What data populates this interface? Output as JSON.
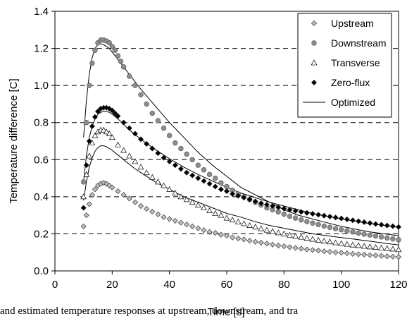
{
  "chart_data": {
    "type": "scatter",
    "xlabel": "Time [s]",
    "ylabel": "Temperature difference [C]",
    "xlim": [
      0,
      120
    ],
    "ylim": [
      0,
      1.4
    ],
    "xticks": [
      "0",
      "20",
      "40",
      "60",
      "80",
      "100",
      "120"
    ],
    "yticks": [
      "0.0",
      "0.2",
      "0.4",
      "0.6",
      "0.8",
      "1.0",
      "1.2",
      "1.4"
    ],
    "grid": "horizontal dashed",
    "legend_position": "top-right",
    "series": [
      {
        "name": "Upstream",
        "marker": "diamond",
        "fill": "#bdbdbd",
        "x": [
          10,
          11,
          12,
          13,
          14,
          15,
          16,
          17,
          18,
          19,
          20,
          22,
          24,
          26,
          28,
          30,
          32,
          34,
          36,
          38,
          40,
          42,
          44,
          46,
          48,
          50,
          52,
          54,
          56,
          58,
          60,
          62,
          64,
          66,
          68,
          70,
          72,
          74,
          76,
          78,
          80,
          82,
          84,
          86,
          88,
          90,
          92,
          94,
          96,
          98,
          100,
          102,
          104,
          106,
          108,
          110,
          112,
          114,
          116,
          118,
          120
        ],
        "y": [
          0.24,
          0.3,
          0.36,
          0.41,
          0.44,
          0.46,
          0.47,
          0.475,
          0.47,
          0.46,
          0.45,
          0.43,
          0.41,
          0.39,
          0.37,
          0.35,
          0.335,
          0.32,
          0.305,
          0.29,
          0.28,
          0.27,
          0.26,
          0.25,
          0.24,
          0.23,
          0.22,
          0.21,
          0.205,
          0.195,
          0.19,
          0.18,
          0.175,
          0.17,
          0.163,
          0.157,
          0.152,
          0.147,
          0.142,
          0.137,
          0.133,
          0.128,
          0.124,
          0.12,
          0.116,
          0.113,
          0.11,
          0.106,
          0.103,
          0.1,
          0.098,
          0.095,
          0.092,
          0.09,
          0.088,
          0.085,
          0.083,
          0.081,
          0.079,
          0.077,
          0.075
        ]
      },
      {
        "name": "Downstream",
        "marker": "circle",
        "fill": "#8c8c8c",
        "x": [
          10,
          11,
          12,
          13,
          14,
          15,
          16,
          17,
          18,
          19,
          20,
          21,
          22,
          23,
          24,
          26,
          28,
          30,
          32,
          34,
          36,
          38,
          40,
          42,
          44,
          46,
          48,
          50,
          52,
          54,
          56,
          58,
          60,
          62,
          64,
          66,
          68,
          70,
          72,
          74,
          76,
          78,
          80,
          82,
          84,
          86,
          88,
          90,
          92,
          94,
          96,
          98,
          100,
          102,
          104,
          106,
          108,
          110,
          112,
          114,
          116,
          118,
          120
        ],
        "y": [
          0.48,
          0.8,
          1.0,
          1.12,
          1.19,
          1.23,
          1.245,
          1.245,
          1.24,
          1.23,
          1.21,
          1.19,
          1.16,
          1.13,
          1.1,
          1.05,
          1.0,
          0.95,
          0.9,
          0.85,
          0.81,
          0.77,
          0.73,
          0.69,
          0.66,
          0.63,
          0.6,
          0.57,
          0.545,
          0.52,
          0.5,
          0.475,
          0.455,
          0.435,
          0.415,
          0.4,
          0.385,
          0.37,
          0.355,
          0.34,
          0.33,
          0.318,
          0.306,
          0.295,
          0.285,
          0.275,
          0.266,
          0.258,
          0.25,
          0.242,
          0.235,
          0.228,
          0.222,
          0.216,
          0.21,
          0.204,
          0.198,
          0.193,
          0.188,
          0.183,
          0.178,
          0.173,
          0.168
        ]
      },
      {
        "name": "Transverse",
        "marker": "triangle",
        "fill": "#ffffff",
        "x": [
          10,
          11,
          12,
          13,
          14,
          15,
          16,
          17,
          18,
          19,
          20,
          22,
          24,
          26,
          28,
          30,
          32,
          34,
          36,
          38,
          40,
          42,
          44,
          46,
          48,
          50,
          52,
          54,
          56,
          58,
          60,
          62,
          64,
          66,
          68,
          70,
          72,
          74,
          76,
          78,
          80,
          82,
          84,
          86,
          88,
          90,
          92,
          94,
          96,
          98,
          100,
          102,
          104,
          106,
          108,
          110,
          112,
          114,
          116,
          118,
          120
        ],
        "y": [
          0.4,
          0.52,
          0.62,
          0.69,
          0.73,
          0.75,
          0.76,
          0.76,
          0.75,
          0.74,
          0.72,
          0.68,
          0.65,
          0.62,
          0.59,
          0.56,
          0.53,
          0.505,
          0.48,
          0.46,
          0.44,
          0.42,
          0.4,
          0.385,
          0.37,
          0.355,
          0.34,
          0.325,
          0.31,
          0.3,
          0.285,
          0.275,
          0.265,
          0.255,
          0.245,
          0.237,
          0.228,
          0.22,
          0.213,
          0.206,
          0.2,
          0.193,
          0.187,
          0.182,
          0.176,
          0.171,
          0.166,
          0.161,
          0.157,
          0.152,
          0.148,
          0.144,
          0.14,
          0.137,
          0.133,
          0.13,
          0.127,
          0.124,
          0.121,
          0.118,
          0.115
        ]
      },
      {
        "name": "Zero-flux",
        "marker": "diamond",
        "fill": "#000000",
        "x": [
          10,
          11,
          12,
          13,
          14,
          15,
          16,
          17,
          18,
          19,
          20,
          21,
          22,
          24,
          26,
          28,
          30,
          32,
          34,
          36,
          38,
          40,
          42,
          44,
          46,
          48,
          50,
          52,
          54,
          56,
          58,
          60,
          62,
          64,
          66,
          68,
          70,
          72,
          74,
          76,
          78,
          80,
          82,
          84,
          86,
          88,
          90,
          92,
          94,
          96,
          98,
          100,
          102,
          104,
          106,
          108,
          110,
          112,
          114,
          116,
          118,
          120
        ],
        "y": [
          0.34,
          0.57,
          0.7,
          0.78,
          0.83,
          0.86,
          0.875,
          0.88,
          0.88,
          0.875,
          0.865,
          0.85,
          0.835,
          0.8,
          0.77,
          0.74,
          0.71,
          0.685,
          0.66,
          0.635,
          0.61,
          0.59,
          0.57,
          0.55,
          0.53,
          0.515,
          0.5,
          0.485,
          0.47,
          0.455,
          0.44,
          0.43,
          0.415,
          0.405,
          0.395,
          0.385,
          0.375,
          0.365,
          0.357,
          0.35,
          0.343,
          0.336,
          0.33,
          0.324,
          0.318,
          0.313,
          0.308,
          0.303,
          0.298,
          0.293,
          0.288,
          0.283,
          0.278,
          0.273,
          0.268,
          0.263,
          0.258,
          0.253,
          0.249,
          0.245,
          0.241,
          0.237
        ]
      },
      {
        "name": "Optimized",
        "marker": "line",
        "stroke": "#000000",
        "curves": [
          {
            "x": [
              10,
              11,
              12,
              13,
              14,
              15,
              16,
              17,
              18,
              19,
              20,
              22,
              24,
              26,
              28,
              30,
              35,
              40,
              45,
              50,
              55,
              60,
              65,
              70,
              75,
              80,
              85,
              90,
              95,
              100,
              105,
              110,
              115,
              120
            ],
            "y": [
              0.72,
              0.92,
              1.06,
              1.15,
              1.2,
              1.22,
              1.225,
              1.22,
              1.21,
              1.2,
              1.18,
              1.14,
              1.1,
              1.06,
              1.02,
              0.98,
              0.89,
              0.8,
              0.72,
              0.64,
              0.57,
              0.51,
              0.45,
              0.41,
              0.37,
              0.33,
              0.3,
              0.28,
              0.26,
              0.24,
              0.225,
              0.21,
              0.2,
              0.19
            ]
          },
          {
            "x": [
              10,
              11,
              12,
              13,
              14,
              15,
              16,
              17,
              18,
              19,
              20,
              22,
              24,
              26,
              28,
              30,
              35,
              40,
              45,
              50,
              55,
              60,
              65,
              70,
              75,
              80,
              85,
              90,
              95,
              100,
              105,
              110,
              115,
              120
            ],
            "y": [
              0.48,
              0.62,
              0.72,
              0.78,
              0.82,
              0.845,
              0.855,
              0.86,
              0.86,
              0.855,
              0.845,
              0.82,
              0.79,
              0.76,
              0.735,
              0.71,
              0.655,
              0.605,
              0.56,
              0.52,
              0.485,
              0.45,
              0.42,
              0.395,
              0.37,
              0.35,
              0.33,
              0.31,
              0.295,
              0.28,
              0.267,
              0.255,
              0.245,
              0.235
            ]
          },
          {
            "x": [
              10,
              11,
              12,
              13,
              14,
              15,
              16,
              17,
              18,
              19,
              20,
              22,
              24,
              26,
              28,
              30,
              35,
              40,
              45,
              50,
              55,
              60,
              65,
              70,
              75,
              80,
              85,
              90,
              95,
              100,
              105,
              110,
              115,
              120
            ],
            "y": [
              0.38,
              0.48,
              0.56,
              0.61,
              0.645,
              0.665,
              0.675,
              0.675,
              0.67,
              0.66,
              0.65,
              0.625,
              0.6,
              0.575,
              0.55,
              0.53,
              0.48,
              0.44,
              0.4,
              0.37,
              0.34,
              0.31,
              0.29,
              0.265,
              0.245,
              0.23,
              0.215,
              0.2,
              0.19,
              0.18,
              0.17,
              0.16,
              0.15,
              0.14
            ]
          }
        ]
      }
    ]
  },
  "caption_fragment": "and estimated temperature responses at upstream, downstream, and tra"
}
